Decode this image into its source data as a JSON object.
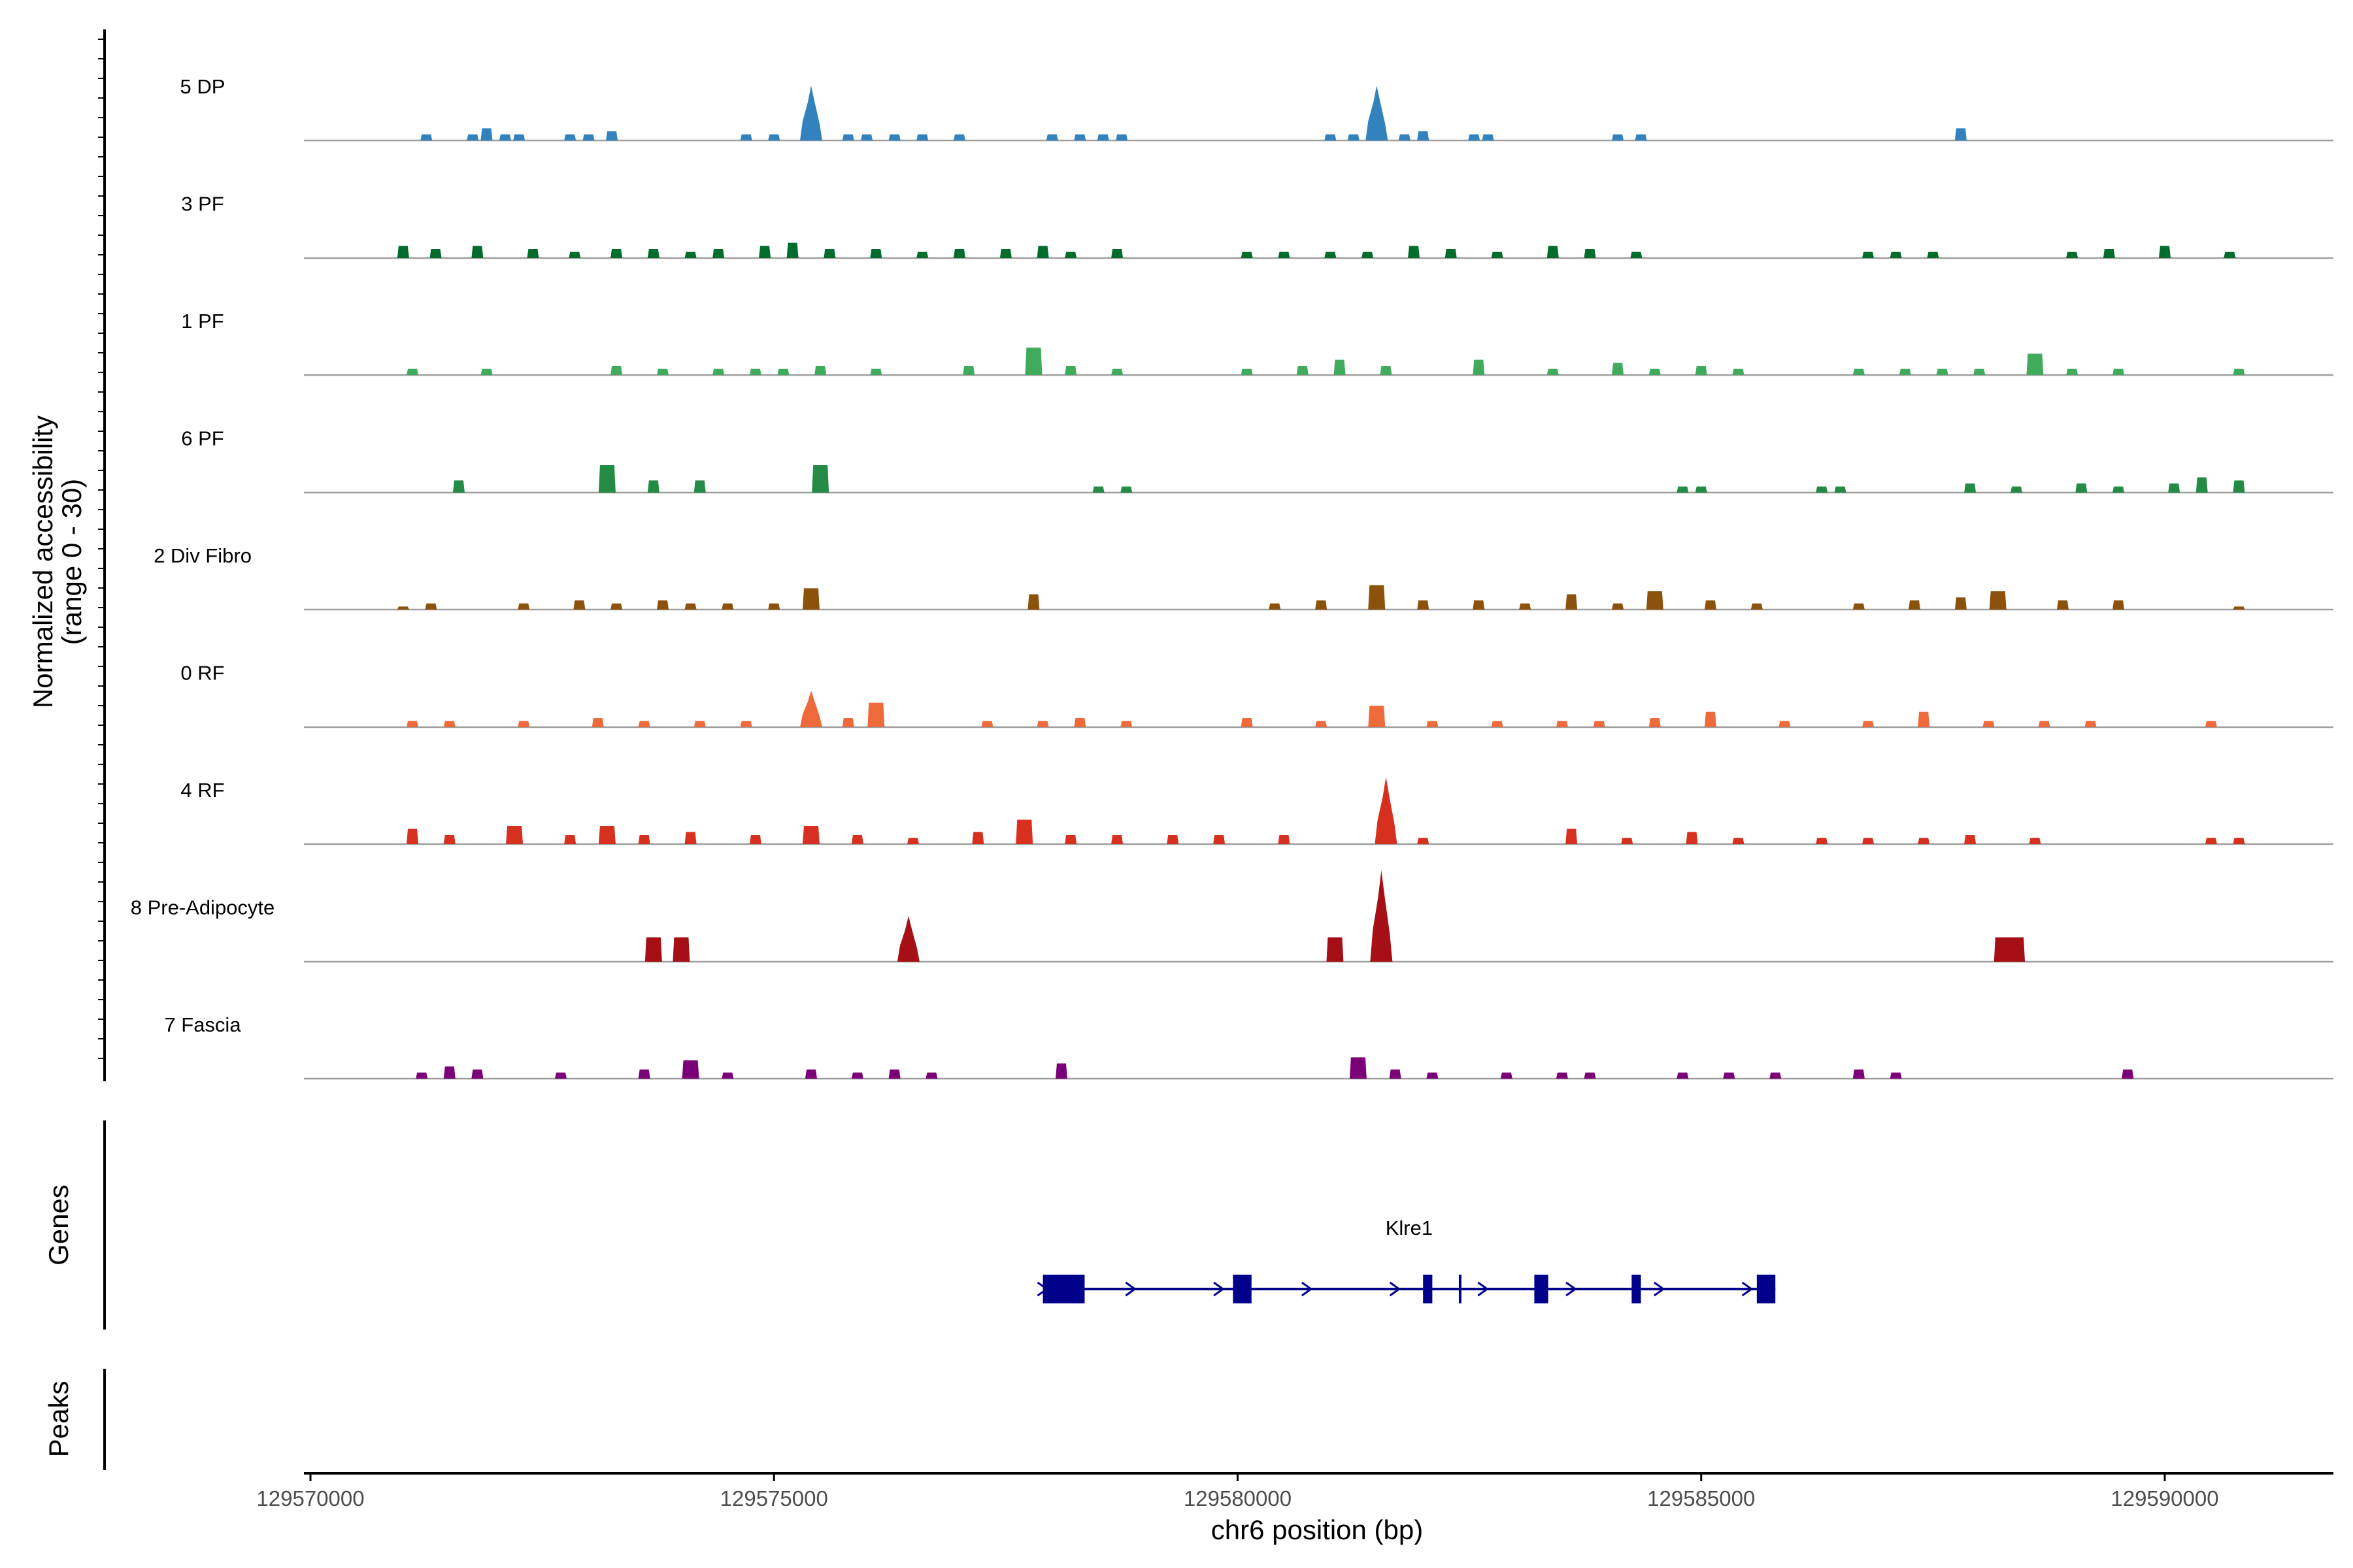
{
  "chart_data": {
    "type": "area",
    "title": "",
    "xlabel": "chr6 position (bp)",
    "ylabel": "Normalized accessibility",
    "ylabel_range_text": "(range 0 - 30)",
    "ylim": [
      0,
      30
    ],
    "xlim": [
      129569900,
      129592000
    ],
    "x_ticks": [
      129570000,
      129575000,
      129580000,
      129585000,
      129590000
    ],
    "x_tick_labels": [
      "129570000",
      "129575000",
      "129580000",
      "129585000",
      "129590000"
    ],
    "tracks": [
      {
        "name": "5 DP",
        "color": "#3182bd",
        "peaks": [
          [
            129571250,
            2
          ],
          [
            129571750,
            2
          ],
          [
            129571900,
            4
          ],
          [
            129572100,
            2
          ],
          [
            129572250,
            2
          ],
          [
            129572800,
            2
          ],
          [
            129573000,
            2
          ],
          [
            129573250,
            3
          ],
          [
            129574700,
            2
          ],
          [
            129575000,
            2
          ],
          [
            129575400,
            18
          ],
          [
            129575800,
            2
          ],
          [
            129576000,
            2
          ],
          [
            129576300,
            2
          ],
          [
            129576600,
            2
          ],
          [
            129577000,
            2
          ],
          [
            129578000,
            2
          ],
          [
            129578300,
            2
          ],
          [
            129578550,
            2
          ],
          [
            129578750,
            2
          ],
          [
            129581000,
            2
          ],
          [
            129581250,
            2
          ],
          [
            129581500,
            18
          ],
          [
            129581800,
            2
          ],
          [
            129582000,
            3
          ],
          [
            129582550,
            2
          ],
          [
            129582700,
            2
          ],
          [
            129584100,
            2
          ],
          [
            129584350,
            2
          ],
          [
            129587800,
            4
          ]
        ]
      },
      {
        "name": "3 PF",
        "color": "#006d2c",
        "peaks": [
          [
            129571000,
            4
          ],
          [
            129571350,
            3
          ],
          [
            129571800,
            4
          ],
          [
            129572400,
            3
          ],
          [
            129572850,
            2
          ],
          [
            129573300,
            3
          ],
          [
            129573700,
            3
          ],
          [
            129574100,
            2
          ],
          [
            129574400,
            3
          ],
          [
            129574900,
            4
          ],
          [
            129575200,
            5
          ],
          [
            129575600,
            3
          ],
          [
            129576100,
            3
          ],
          [
            129576600,
            2
          ],
          [
            129577000,
            3
          ],
          [
            129577500,
            3
          ],
          [
            129577900,
            4
          ],
          [
            129578200,
            2
          ],
          [
            129578700,
            3
          ],
          [
            129580100,
            2
          ],
          [
            129580500,
            2
          ],
          [
            129581000,
            2
          ],
          [
            129581400,
            2
          ],
          [
            129581900,
            4
          ],
          [
            129582300,
            3
          ],
          [
            129582800,
            2
          ],
          [
            129583400,
            4
          ],
          [
            129583800,
            3
          ],
          [
            129584300,
            2
          ],
          [
            129586800,
            2
          ],
          [
            129587100,
            2
          ],
          [
            129587500,
            2
          ],
          [
            129589000,
            2
          ],
          [
            129589400,
            3
          ],
          [
            129590000,
            4
          ],
          [
            129590700,
            2
          ]
        ]
      },
      {
        "name": "1 PF",
        "color": "#41ab5d",
        "peaks": [
          [
            129571100,
            2
          ],
          [
            129571900,
            2
          ],
          [
            129573300,
            3
          ],
          [
            129573800,
            2
          ],
          [
            129574400,
            2
          ],
          [
            129574800,
            2
          ],
          [
            129575100,
            2
          ],
          [
            129575500,
            3
          ],
          [
            129576100,
            2
          ],
          [
            129577100,
            3
          ],
          [
            129577800,
            9
          ],
          [
            129578200,
            3
          ],
          [
            129578700,
            2
          ],
          [
            129580100,
            2
          ],
          [
            129580700,
            3
          ],
          [
            129581100,
            5
          ],
          [
            129581600,
            3
          ],
          [
            129582600,
            5
          ],
          [
            129583400,
            2
          ],
          [
            129584100,
            4
          ],
          [
            129584500,
            2
          ],
          [
            129585000,
            3
          ],
          [
            129585400,
            2
          ],
          [
            129586700,
            2
          ],
          [
            129587200,
            2
          ],
          [
            129587600,
            2
          ],
          [
            129588000,
            2
          ],
          [
            129588600,
            7
          ],
          [
            129589000,
            2
          ],
          [
            129589500,
            2
          ],
          [
            129590800,
            2
          ]
        ]
      },
      {
        "name": "6 PF",
        "color": "#238b45",
        "peaks": [
          [
            129571600,
            4
          ],
          [
            129573200,
            9
          ],
          [
            129573700,
            4
          ],
          [
            129574200,
            4
          ],
          [
            129575500,
            9
          ],
          [
            129578500,
            2
          ],
          [
            129578800,
            2
          ],
          [
            129584800,
            2
          ],
          [
            129585000,
            2
          ],
          [
            129586300,
            2
          ],
          [
            129586500,
            2
          ],
          [
            129587900,
            3
          ],
          [
            129588400,
            2
          ],
          [
            129589100,
            3
          ],
          [
            129589500,
            2
          ],
          [
            129590100,
            3
          ],
          [
            129590400,
            5
          ],
          [
            129590800,
            4
          ]
        ]
      },
      {
        "name": "2 Div Fibro",
        "color": "#8c510a",
        "peaks": [
          [
            129571000,
            1
          ],
          [
            129571300,
            2
          ],
          [
            129572300,
            2
          ],
          [
            129572900,
            3
          ],
          [
            129573300,
            2
          ],
          [
            129573800,
            3
          ],
          [
            129574100,
            2
          ],
          [
            129574500,
            2
          ],
          [
            129575000,
            2
          ],
          [
            129575400,
            7
          ],
          [
            129577800,
            5
          ],
          [
            129580400,
            2
          ],
          [
            129580900,
            3
          ],
          [
            129581500,
            8
          ],
          [
            129582000,
            3
          ],
          [
            129582600,
            3
          ],
          [
            129583100,
            2
          ],
          [
            129583600,
            5
          ],
          [
            129584100,
            2
          ],
          [
            129584500,
            6
          ],
          [
            129585100,
            3
          ],
          [
            129585600,
            2
          ],
          [
            129586700,
            2
          ],
          [
            129587300,
            3
          ],
          [
            129587800,
            4
          ],
          [
            129588200,
            6
          ],
          [
            129588900,
            3
          ],
          [
            129589500,
            3
          ],
          [
            129590800,
            1
          ]
        ]
      },
      {
        "name": "0 RF",
        "color": "#ef6a3a",
        "peaks": [
          [
            129571100,
            2
          ],
          [
            129571500,
            2
          ],
          [
            129572300,
            2
          ],
          [
            129573100,
            3
          ],
          [
            129573600,
            2
          ],
          [
            129574200,
            2
          ],
          [
            129574700,
            2
          ],
          [
            129575400,
            12
          ],
          [
            129575800,
            3
          ],
          [
            129576100,
            8
          ],
          [
            129577300,
            2
          ],
          [
            129577900,
            2
          ],
          [
            129578300,
            3
          ],
          [
            129578800,
            2
          ],
          [
            129580100,
            3
          ],
          [
            129580900,
            2
          ],
          [
            129581500,
            7
          ],
          [
            129582100,
            2
          ],
          [
            129582800,
            2
          ],
          [
            129583500,
            2
          ],
          [
            129583900,
            2
          ],
          [
            129584500,
            3
          ],
          [
            129585100,
            5
          ],
          [
            129585900,
            2
          ],
          [
            129586800,
            2
          ],
          [
            129587400,
            5
          ],
          [
            129588100,
            2
          ],
          [
            129588700,
            2
          ],
          [
            129589200,
            2
          ],
          [
            129590500,
            2
          ]
        ]
      },
      {
        "name": "4 RF",
        "color": "#d7301f",
        "peaks": [
          [
            129571100,
            5
          ],
          [
            129571500,
            3
          ],
          [
            129572200,
            6
          ],
          [
            129572800,
            3
          ],
          [
            129573200,
            6
          ],
          [
            129573600,
            3
          ],
          [
            129574100,
            4
          ],
          [
            129574800,
            3
          ],
          [
            129575400,
            6
          ],
          [
            129575900,
            3
          ],
          [
            129576500,
            2
          ],
          [
            129577200,
            4
          ],
          [
            129577700,
            8
          ],
          [
            129578200,
            3
          ],
          [
            129578700,
            3
          ],
          [
            129579300,
            3
          ],
          [
            129579800,
            3
          ],
          [
            129580500,
            3
          ],
          [
            129581600,
            22
          ],
          [
            129582000,
            2
          ],
          [
            129583600,
            5
          ],
          [
            129584200,
            2
          ],
          [
            129584900,
            4
          ],
          [
            129585400,
            2
          ],
          [
            129586300,
            2
          ],
          [
            129586800,
            2
          ],
          [
            129587400,
            2
          ],
          [
            129587900,
            3
          ],
          [
            129588600,
            2
          ],
          [
            129590500,
            2
          ],
          [
            129590800,
            2
          ]
        ]
      },
      {
        "name": "8 Pre-Adipocyte",
        "color": "#a50f15",
        "peaks": [
          [
            129573700,
            8
          ],
          [
            129574000,
            8
          ],
          [
            129576450,
            15
          ],
          [
            129581050,
            8
          ],
          [
            129581550,
            30
          ],
          [
            129588250,
            8
          ],
          [
            129588400,
            8
          ]
        ]
      },
      {
        "name": "7 Fascia",
        "color": "#7a0177",
        "peaks": [
          [
            129571200,
            2
          ],
          [
            129571500,
            4
          ],
          [
            129571800,
            3
          ],
          [
            129572700,
            2
          ],
          [
            129573600,
            3
          ],
          [
            129574100,
            6
          ],
          [
            129574500,
            2
          ],
          [
            129575400,
            3
          ],
          [
            129575900,
            2
          ],
          [
            129576300,
            3
          ],
          [
            129576700,
            2
          ],
          [
            129578100,
            5
          ],
          [
            129581300,
            7
          ],
          [
            129581700,
            3
          ],
          [
            129582100,
            2
          ],
          [
            129582900,
            2
          ],
          [
            129583500,
            2
          ],
          [
            129583800,
            2
          ],
          [
            129584800,
            2
          ],
          [
            129585300,
            2
          ],
          [
            129585800,
            2
          ],
          [
            129586700,
            3
          ],
          [
            129587100,
            2
          ],
          [
            129589600,
            3
          ]
        ]
      }
    ],
    "genes": [
      {
        "name": "Klre1",
        "strand": "+",
        "start": 129577900,
        "end": 129585800,
        "exons": [
          [
            129577900,
            129578350
          ],
          [
            129579950,
            129580150
          ],
          [
            129582000,
            129582100
          ],
          [
            129583200,
            129583350
          ],
          [
            129584250,
            129584350
          ],
          [
            129585600,
            129585800
          ]
        ],
        "small_marks": [
          129582400
        ]
      }
    ],
    "panel_labels": {
      "genes": "Genes",
      "peaks": "Peaks"
    }
  }
}
